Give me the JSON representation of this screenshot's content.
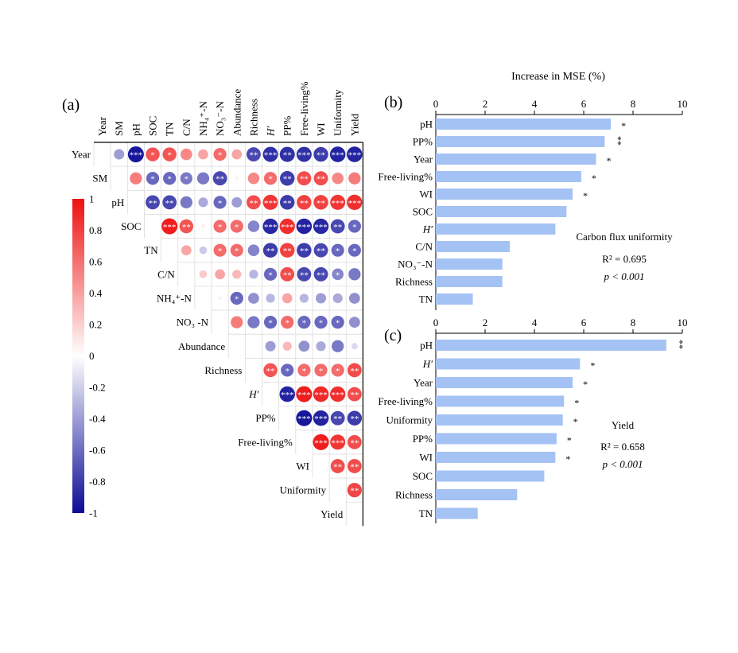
{
  "panels": {
    "a": "(a)",
    "b": "(b)",
    "c": "(c)"
  },
  "top_axis_title": "Increase in MSE (%)",
  "colors": {
    "negative": "#0b0b96",
    "zero": "#ffffff",
    "positive": "#ee1111",
    "bar": "#a4c2f4"
  },
  "chart_data": [
    {
      "type": "heatmap",
      "id": "a",
      "variables_top": [
        "Year",
        "SM",
        "pH",
        "SOC",
        "TN",
        "C/N",
        "NH₄⁺-N",
        "NO₃⁻-N",
        "Abundance",
        "Richness",
        "H′",
        "PP%",
        "Free-living%",
        "WI",
        "Uniformity",
        "Yield"
      ],
      "variables_row": [
        "Year",
        "SM",
        "pH",
        "SOC",
        "TN",
        "C/N",
        "NH₄⁺-N",
        "NO₃ -N",
        "Abundance",
        "Richness",
        "H′",
        "PP%",
        "Free-living%",
        "WI",
        "Uniformity",
        "Yield"
      ],
      "italic_vars": [
        "H′"
      ],
      "colorbar": {
        "min": -1,
        "max": 1,
        "ticks": [
          "1",
          "0.8",
          "0.6",
          "0.4",
          "0.2",
          "0",
          "-0.2",
          "-0.4",
          "-0.6",
          "-0.8",
          "-1"
        ]
      },
      "cells": [
        {
          "r": 0,
          "c": 1,
          "v": -0.4,
          "s": ""
        },
        {
          "r": 0,
          "c": 2,
          "v": -0.95,
          "s": "***"
        },
        {
          "r": 0,
          "c": 3,
          "v": 0.72,
          "s": "*"
        },
        {
          "r": 0,
          "c": 4,
          "v": 0.72,
          "s": "*"
        },
        {
          "r": 0,
          "c": 5,
          "v": 0.5,
          "s": ""
        },
        {
          "r": 0,
          "c": 6,
          "v": 0.38,
          "s": ""
        },
        {
          "r": 0,
          "c": 7,
          "v": 0.62,
          "s": "*"
        },
        {
          "r": 0,
          "c": 8,
          "v": 0.38,
          "s": ""
        },
        {
          "r": 0,
          "c": 9,
          "v": -0.75,
          "s": "**"
        },
        {
          "r": 0,
          "c": 10,
          "v": -0.85,
          "s": "***"
        },
        {
          "r": 0,
          "c": 11,
          "v": -0.85,
          "s": "**"
        },
        {
          "r": 0,
          "c": 12,
          "v": -0.85,
          "s": "***"
        },
        {
          "r": 0,
          "c": 13,
          "v": -0.8,
          "s": "**"
        },
        {
          "r": 0,
          "c": 14,
          "v": -0.9,
          "s": "***"
        },
        {
          "r": 0,
          "c": 15,
          "v": -0.9,
          "s": "***"
        },
        {
          "r": 1,
          "c": 2,
          "v": 0.55,
          "s": ""
        },
        {
          "r": 1,
          "c": 3,
          "v": -0.62,
          "s": "*"
        },
        {
          "r": 1,
          "c": 4,
          "v": -0.62,
          "s": "*"
        },
        {
          "r": 1,
          "c": 5,
          "v": -0.55,
          "s": "*"
        },
        {
          "r": 1,
          "c": 6,
          "v": -0.55,
          "s": ""
        },
        {
          "r": 1,
          "c": 7,
          "v": -0.75,
          "s": "**"
        },
        {
          "r": 1,
          "c": 8,
          "v": 0.06,
          "s": ""
        },
        {
          "r": 1,
          "c": 9,
          "v": 0.5,
          "s": ""
        },
        {
          "r": 1,
          "c": 10,
          "v": 0.62,
          "s": "*"
        },
        {
          "r": 1,
          "c": 11,
          "v": -0.8,
          "s": "**"
        },
        {
          "r": 1,
          "c": 12,
          "v": 0.75,
          "s": "**"
        },
        {
          "r": 1,
          "c": 13,
          "v": 0.75,
          "s": "**"
        },
        {
          "r": 1,
          "c": 14,
          "v": 0.5,
          "s": ""
        },
        {
          "r": 1,
          "c": 15,
          "v": 0.55,
          "s": ""
        },
        {
          "r": 2,
          "c": 3,
          "v": -0.75,
          "s": "**"
        },
        {
          "r": 2,
          "c": 4,
          "v": -0.75,
          "s": "**"
        },
        {
          "r": 2,
          "c": 5,
          "v": -0.55,
          "s": ""
        },
        {
          "r": 2,
          "c": 6,
          "v": -0.35,
          "s": ""
        },
        {
          "r": 2,
          "c": 7,
          "v": -0.62,
          "s": "*"
        },
        {
          "r": 2,
          "c": 8,
          "v": -0.4,
          "s": ""
        },
        {
          "r": 2,
          "c": 9,
          "v": 0.75,
          "s": "**"
        },
        {
          "r": 2,
          "c": 10,
          "v": 0.85,
          "s": "***"
        },
        {
          "r": 2,
          "c": 11,
          "v": -0.8,
          "s": "**"
        },
        {
          "r": 2,
          "c": 12,
          "v": 0.8,
          "s": "**"
        },
        {
          "r": 2,
          "c": 13,
          "v": 0.8,
          "s": "**"
        },
        {
          "r": 2,
          "c": 14,
          "v": 0.85,
          "s": "***"
        },
        {
          "r": 2,
          "c": 15,
          "v": 0.88,
          "s": "***"
        },
        {
          "r": 3,
          "c": 4,
          "v": 0.95,
          "s": "***"
        },
        {
          "r": 3,
          "c": 5,
          "v": 0.72,
          "s": "**"
        },
        {
          "r": 3,
          "c": 6,
          "v": 0.06,
          "s": ""
        },
        {
          "r": 3,
          "c": 7,
          "v": 0.62,
          "s": "*"
        },
        {
          "r": 3,
          "c": 8,
          "v": 0.62,
          "s": "*"
        },
        {
          "r": 3,
          "c": 9,
          "v": -0.5,
          "s": ""
        },
        {
          "r": 3,
          "c": 10,
          "v": -0.88,
          "s": "***"
        },
        {
          "r": 3,
          "c": 11,
          "v": 0.88,
          "s": "***"
        },
        {
          "r": 3,
          "c": 12,
          "v": -0.9,
          "s": "***"
        },
        {
          "r": 3,
          "c": 13,
          "v": -0.88,
          "s": "***"
        },
        {
          "r": 3,
          "c": 14,
          "v": -0.75,
          "s": "**"
        },
        {
          "r": 3,
          "c": 15,
          "v": -0.62,
          "s": "*"
        },
        {
          "r": 4,
          "c": 5,
          "v": 0.38,
          "s": ""
        },
        {
          "r": 4,
          "c": 6,
          "v": -0.22,
          "s": ""
        },
        {
          "r": 4,
          "c": 7,
          "v": 0.62,
          "s": "*"
        },
        {
          "r": 4,
          "c": 8,
          "v": 0.62,
          "s": "*"
        },
        {
          "r": 4,
          "c": 9,
          "v": -0.5,
          "s": ""
        },
        {
          "r": 4,
          "c": 10,
          "v": -0.8,
          "s": "**"
        },
        {
          "r": 4,
          "c": 11,
          "v": 0.8,
          "s": "**"
        },
        {
          "r": 4,
          "c": 12,
          "v": -0.8,
          "s": "**"
        },
        {
          "r": 4,
          "c": 13,
          "v": -0.75,
          "s": "**"
        },
        {
          "r": 4,
          "c": 14,
          "v": -0.62,
          "s": "*"
        },
        {
          "r": 4,
          "c": 15,
          "v": -0.62,
          "s": "*"
        },
        {
          "r": 5,
          "c": 6,
          "v": 0.22,
          "s": ""
        },
        {
          "r": 5,
          "c": 7,
          "v": 0.38,
          "s": ""
        },
        {
          "r": 5,
          "c": 8,
          "v": 0.3,
          "s": ""
        },
        {
          "r": 5,
          "c": 9,
          "v": -0.3,
          "s": ""
        },
        {
          "r": 5,
          "c": 10,
          "v": -0.62,
          "s": "*"
        },
        {
          "r": 5,
          "c": 11,
          "v": 0.75,
          "s": "**"
        },
        {
          "r": 5,
          "c": 12,
          "v": -0.75,
          "s": "**"
        },
        {
          "r": 5,
          "c": 13,
          "v": -0.75,
          "s": "**"
        },
        {
          "r": 5,
          "c": 14,
          "v": -0.5,
          "s": "*"
        },
        {
          "r": 5,
          "c": 15,
          "v": -0.55,
          "s": ""
        },
        {
          "r": 6,
          "c": 7,
          "v": 0.06,
          "s": ""
        },
        {
          "r": 6,
          "c": 8,
          "v": -0.62,
          "s": "*"
        },
        {
          "r": 6,
          "c": 9,
          "v": -0.45,
          "s": ""
        },
        {
          "r": 6,
          "c": 10,
          "v": -0.3,
          "s": ""
        },
        {
          "r": 6,
          "c": 11,
          "v": 0.38,
          "s": ""
        },
        {
          "r": 6,
          "c": 12,
          "v": -0.3,
          "s": ""
        },
        {
          "r": 6,
          "c": 13,
          "v": -0.4,
          "s": ""
        },
        {
          "r": 6,
          "c": 14,
          "v": -0.35,
          "s": ""
        },
        {
          "r": 6,
          "c": 15,
          "v": -0.45,
          "s": ""
        },
        {
          "r": 7,
          "c": 8,
          "v": 0.55,
          "s": ""
        },
        {
          "r": 7,
          "c": 9,
          "v": -0.55,
          "s": ""
        },
        {
          "r": 7,
          "c": 10,
          "v": -0.62,
          "s": "*"
        },
        {
          "r": 7,
          "c": 11,
          "v": 0.62,
          "s": "*"
        },
        {
          "r": 7,
          "c": 12,
          "v": -0.62,
          "s": "*"
        },
        {
          "r": 7,
          "c": 13,
          "v": -0.62,
          "s": "*"
        },
        {
          "r": 7,
          "c": 14,
          "v": -0.62,
          "s": "*"
        },
        {
          "r": 7,
          "c": 15,
          "v": -0.45,
          "s": ""
        },
        {
          "r": 8,
          "c": 10,
          "v": -0.4,
          "s": ""
        },
        {
          "r": 8,
          "c": 11,
          "v": 0.3,
          "s": ""
        },
        {
          "r": 8,
          "c": 12,
          "v": -0.45,
          "s": ""
        },
        {
          "r": 8,
          "c": 13,
          "v": -0.35,
          "s": ""
        },
        {
          "r": 8,
          "c": 14,
          "v": -0.55,
          "s": ""
        },
        {
          "r": 8,
          "c": 15,
          "v": -0.15,
          "s": ""
        },
        {
          "r": 9,
          "c": 10,
          "v": 0.72,
          "s": "**"
        },
        {
          "r": 9,
          "c": 11,
          "v": -0.62,
          "s": "*"
        },
        {
          "r": 9,
          "c": 12,
          "v": 0.62,
          "s": "*"
        },
        {
          "r": 9,
          "c": 13,
          "v": 0.62,
          "s": "*"
        },
        {
          "r": 9,
          "c": 14,
          "v": 0.62,
          "s": "*"
        },
        {
          "r": 9,
          "c": 15,
          "v": 0.75,
          "s": "**"
        },
        {
          "r": 10,
          "c": 11,
          "v": -0.9,
          "s": "***"
        },
        {
          "r": 10,
          "c": 12,
          "v": 0.95,
          "s": "***"
        },
        {
          "r": 10,
          "c": 13,
          "v": 0.9,
          "s": "***"
        },
        {
          "r": 10,
          "c": 14,
          "v": 0.88,
          "s": "***"
        },
        {
          "r": 10,
          "c": 15,
          "v": 0.75,
          "s": "**"
        },
        {
          "r": 11,
          "c": 12,
          "v": -0.95,
          "s": "***"
        },
        {
          "r": 11,
          "c": 13,
          "v": -0.9,
          "s": "***"
        },
        {
          "r": 11,
          "c": 14,
          "v": -0.75,
          "s": "**"
        },
        {
          "r": 11,
          "c": 15,
          "v": -0.8,
          "s": "**"
        },
        {
          "r": 12,
          "c": 13,
          "v": 0.95,
          "s": "***"
        },
        {
          "r": 12,
          "c": 14,
          "v": 0.85,
          "s": "***"
        },
        {
          "r": 12,
          "c": 15,
          "v": 0.75,
          "s": "**"
        },
        {
          "r": 13,
          "c": 14,
          "v": 0.75,
          "s": "**"
        },
        {
          "r": 13,
          "c": 15,
          "v": 0.75,
          "s": "**"
        },
        {
          "r": 14,
          "c": 15,
          "v": 0.78,
          "s": "**"
        }
      ]
    },
    {
      "type": "bar",
      "id": "b",
      "orientation": "horizontal",
      "categories": [
        "pH",
        "PP%",
        "Year",
        "Free-living%",
        "WI",
        "SOC",
        "H′",
        "C/N",
        "NO₃⁻-N",
        "Richness",
        "TN"
      ],
      "values": [
        7.1,
        6.85,
        6.5,
        5.9,
        5.55,
        5.3,
        4.85,
        3.0,
        2.7,
        2.7,
        1.5
      ],
      "significance": [
        "*",
        "**",
        "*",
        "*",
        "*",
        "",
        "",
        "",
        "",
        "",
        ""
      ],
      "xlim": [
        0,
        10
      ],
      "ticks": [
        0,
        2,
        4,
        6,
        8,
        10
      ],
      "annotation": [
        "Carbon flux uniformity",
        "R² = 0.695",
        "p < 0.001"
      ]
    },
    {
      "type": "bar",
      "id": "c",
      "orientation": "horizontal",
      "categories": [
        "pH",
        "H′",
        "Year",
        "Free-living%",
        "Uniformity",
        "PP%",
        "WI",
        "SOC",
        "Richness",
        "TN"
      ],
      "values": [
        9.35,
        5.85,
        5.55,
        5.2,
        5.15,
        4.9,
        4.85,
        4.4,
        3.3,
        1.7
      ],
      "significance": [
        "**",
        "*",
        "*",
        "*",
        "*",
        "*",
        "*",
        "",
        "",
        ""
      ],
      "xlim": [
        0,
        10
      ],
      "ticks": [
        0,
        2,
        4,
        6,
        8,
        10
      ],
      "annotation": [
        "Yield",
        "R² = 0.658",
        "p < 0.001"
      ]
    }
  ]
}
